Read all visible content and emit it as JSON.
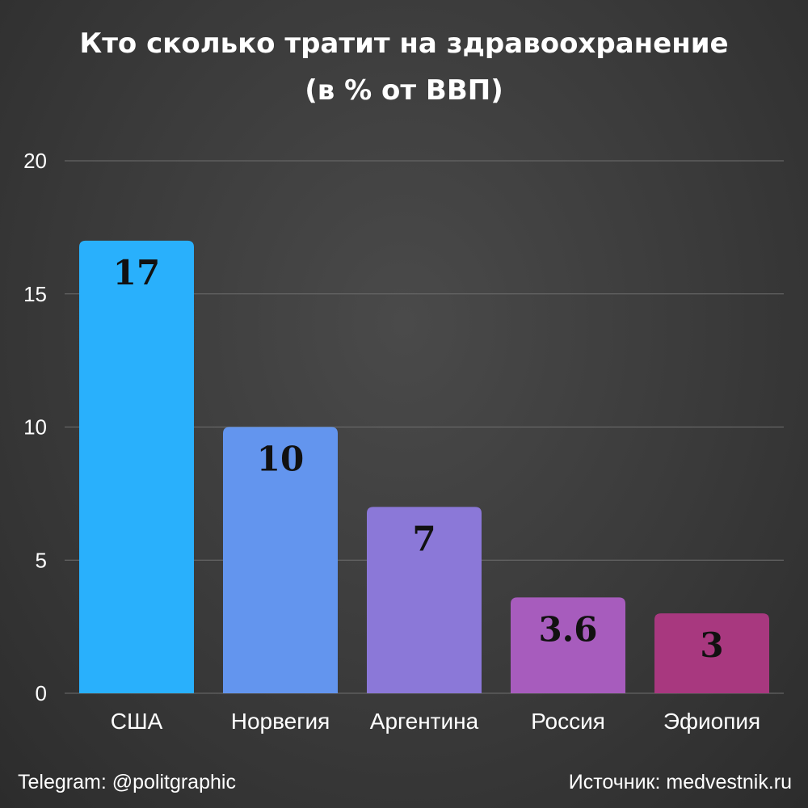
{
  "title": "Кто сколько тратит на здравоохранение",
  "subtitle": "(в % от ВВП)",
  "chart_data": {
    "type": "bar",
    "title": "Кто сколько тратит на здравоохранение",
    "subtitle": "(в % от ВВП)",
    "categories": [
      "США",
      "Норвегия",
      "Аргентина",
      "Россия",
      "Эфиопия"
    ],
    "values": [
      17,
      10,
      7,
      3.6,
      3
    ],
    "data_labels": [
      "17",
      "10",
      "7",
      "3.6",
      "3"
    ],
    "colors": [
      "#29b0fc",
      "#6395ee",
      "#8b78d8",
      "#a75cbd",
      "#a8387f"
    ],
    "ylim": [
      0,
      20
    ],
    "yticks": [
      0,
      5,
      10,
      15,
      20
    ],
    "grid": true,
    "xlabel": "",
    "ylabel": ""
  },
  "footer": {
    "left": "Telegram: @politgraphic",
    "right": "Источник: medvestnik.ru"
  }
}
